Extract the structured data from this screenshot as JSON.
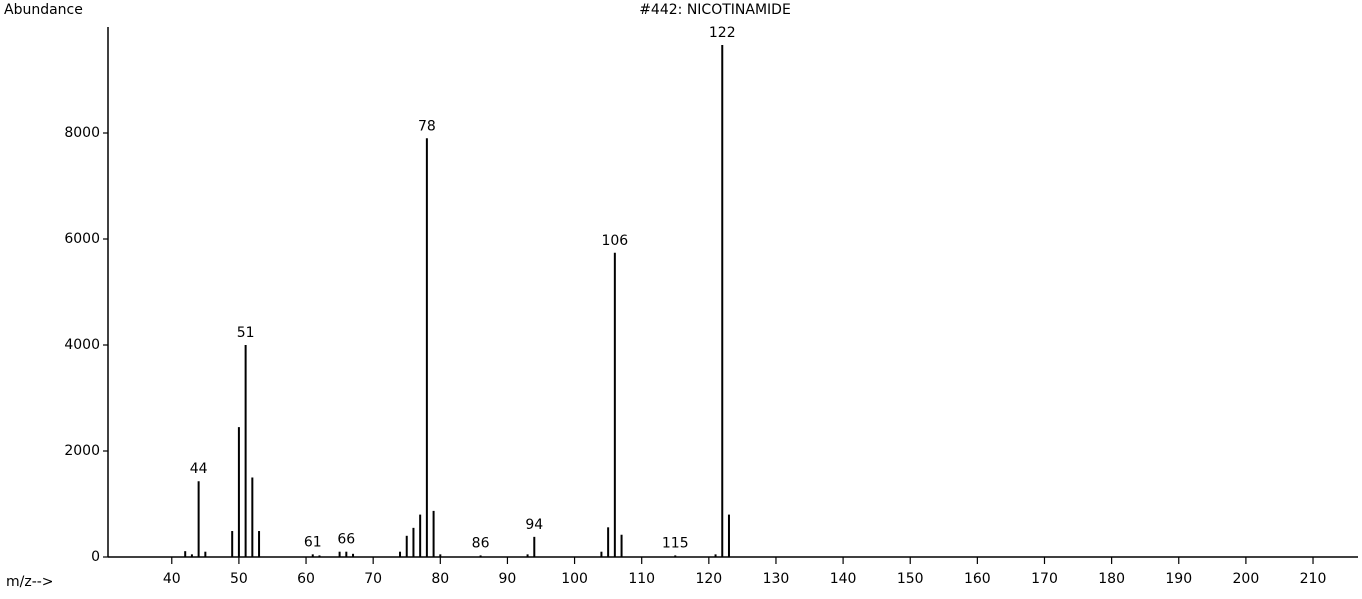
{
  "chart_data": {
    "type": "stem",
    "title": "#442: NICOTINAMIDE",
    "ylabel": "Abundance",
    "xlabel": "m/z-->",
    "x": [
      42,
      43,
      44,
      45,
      49,
      50,
      51,
      52,
      53,
      61,
      62,
      65,
      66,
      67,
      74,
      75,
      76,
      77,
      78,
      79,
      80,
      86,
      93,
      94,
      104,
      105,
      106,
      107,
      115,
      121,
      122,
      123
    ],
    "values": [
      110,
      50,
      1430,
      100,
      490,
      2450,
      4000,
      1500,
      490,
      50,
      30,
      100,
      100,
      60,
      100,
      400,
      550,
      800,
      7900,
      870,
      50,
      30,
      50,
      380,
      100,
      560,
      5740,
      420,
      30,
      50,
      9660,
      800
    ],
    "peak_labels": [
      44,
      51,
      61,
      66,
      78,
      86,
      94,
      106,
      115,
      122
    ],
    "color": "#000000",
    "xlim": [
      30.5,
      216.7
    ],
    "ylim": [
      0,
      10000
    ],
    "xticks": [
      40,
      50,
      60,
      70,
      80,
      90,
      100,
      110,
      120,
      130,
      140,
      150,
      160,
      170,
      180,
      190,
      200,
      210
    ],
    "yticks": [
      0,
      2000,
      4000,
      6000,
      8000
    ]
  }
}
